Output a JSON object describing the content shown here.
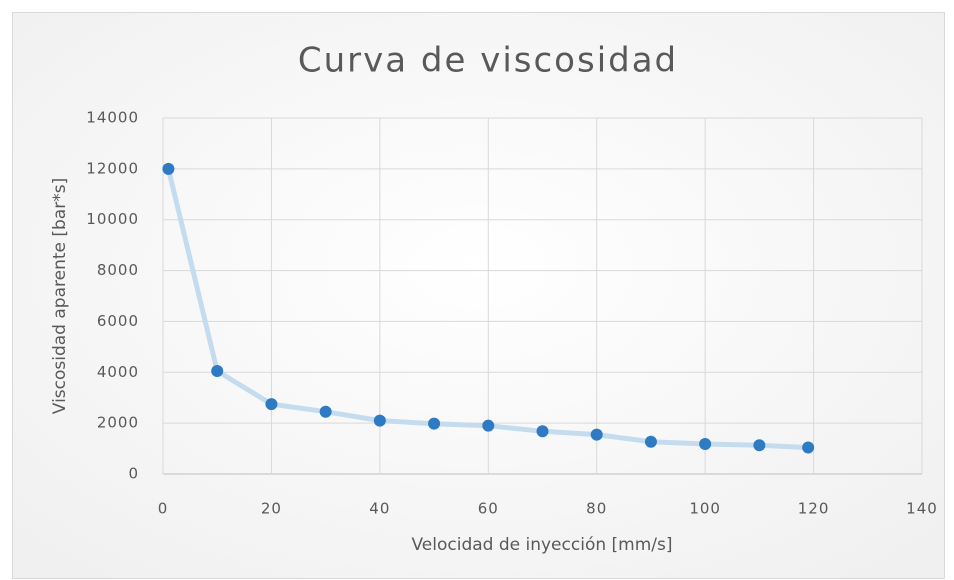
{
  "chart_data": {
    "type": "scatter",
    "title": "Curva de viscosidad",
    "x_label": "Velocidad de inyección [mm/s]",
    "y_label": "Viscosidad aparente [bar*s]",
    "x": [
      1,
      10,
      20,
      30,
      40,
      50,
      60,
      70,
      80,
      90,
      100,
      110,
      119
    ],
    "values": [
      12000,
      4050,
      2750,
      2450,
      2100,
      1980,
      1900,
      1680,
      1550,
      1270,
      1180,
      1130,
      1040
    ],
    "line_color": "#c5dcef",
    "marker_color": "#2e7bc4",
    "xlim": [
      0,
      140
    ],
    "xticks": [
      0,
      20,
      40,
      60,
      80,
      100,
      120,
      140
    ],
    "ylim": [
      0,
      14000
    ],
    "yticks": [
      0,
      2000,
      4000,
      6000,
      8000,
      10000,
      12000,
      14000
    ],
    "grid": true
  }
}
